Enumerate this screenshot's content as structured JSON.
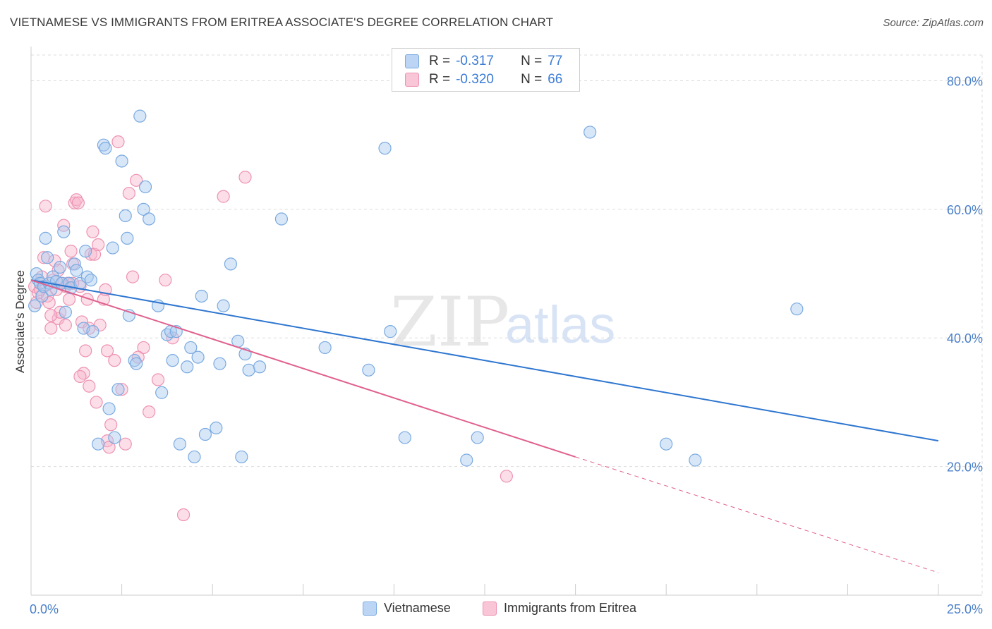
{
  "title": "VIETNAMESE VS IMMIGRANTS FROM ERITREA ASSOCIATE'S DEGREE CORRELATION CHART",
  "source": "Source: ZipAtlas.com",
  "watermark": {
    "zip": "ZIP",
    "atlas": "atlas"
  },
  "colors": {
    "vietnamese_fill": "#a9c9f0",
    "vietnamese_stroke": "#7aaae0",
    "vietnamese_line": "#2e76d0",
    "eritrea_fill": "#f7b6cc",
    "eritrea_stroke": "#ee92b2",
    "eritrea_line": "#e0608e",
    "axis_text": "#4a7fc8",
    "grid": "#dddddd"
  },
  "stats": [
    {
      "r_label": "R =",
      "r_value": "-0.317",
      "n_label": "N =",
      "n_value": "77"
    },
    {
      "r_label": "R =",
      "r_value": "-0.320",
      "n_label": "N =",
      "n_value": "66"
    }
  ],
  "legend": [
    "Vietnamese",
    "Immigrants from Eritrea"
  ],
  "chart_data": {
    "type": "scatter",
    "xlabel": "",
    "ylabel": "Associate's Degree",
    "xlim": [
      0,
      25
    ],
    "ylim": [
      0,
      84
    ],
    "x_tick_labels": [
      "0.0%",
      "25.0%"
    ],
    "y_ticks": [
      20,
      40,
      60,
      80
    ],
    "y_tick_labels": [
      "20.0%",
      "40.0%",
      "60.0%",
      "80.0%"
    ],
    "grid": true,
    "legend_position": "bottom",
    "series": [
      {
        "name": "Vietnamese",
        "points": [
          [
            0.15,
            50.0
          ],
          [
            0.2,
            49.0
          ],
          [
            0.25,
            48.5
          ],
          [
            0.3,
            46.5
          ],
          [
            0.35,
            48.0
          ],
          [
            0.4,
            55.5
          ],
          [
            0.45,
            52.5
          ],
          [
            0.5,
            48.5
          ],
          [
            0.55,
            47.5
          ],
          [
            0.6,
            49.5
          ],
          [
            0.7,
            48.8
          ],
          [
            0.8,
            51.0
          ],
          [
            0.85,
            48.5
          ],
          [
            0.9,
            56.5
          ],
          [
            0.95,
            44.0
          ],
          [
            1.05,
            48.5
          ],
          [
            1.1,
            47.8
          ],
          [
            1.2,
            51.5
          ],
          [
            1.25,
            50.5
          ],
          [
            1.35,
            48.5
          ],
          [
            1.45,
            41.5
          ],
          [
            1.5,
            53.5
          ],
          [
            1.55,
            49.5
          ],
          [
            1.65,
            49.0
          ],
          [
            1.7,
            41.0
          ],
          [
            1.85,
            23.5
          ],
          [
            2.0,
            70.0
          ],
          [
            2.05,
            69.5
          ],
          [
            2.15,
            29.0
          ],
          [
            2.25,
            54.0
          ],
          [
            2.3,
            24.5
          ],
          [
            2.4,
            32.0
          ],
          [
            2.5,
            67.5
          ],
          [
            2.6,
            59.0
          ],
          [
            2.65,
            55.5
          ],
          [
            2.7,
            43.5
          ],
          [
            2.85,
            36.5
          ],
          [
            2.9,
            36.0
          ],
          [
            3.0,
            74.5
          ],
          [
            3.1,
            60.0
          ],
          [
            3.15,
            63.5
          ],
          [
            3.25,
            58.5
          ],
          [
            3.5,
            45.0
          ],
          [
            3.6,
            31.5
          ],
          [
            3.75,
            40.5
          ],
          [
            3.85,
            41.0
          ],
          [
            3.9,
            36.5
          ],
          [
            4.0,
            41.0
          ],
          [
            4.1,
            23.5
          ],
          [
            4.3,
            35.5
          ],
          [
            4.4,
            38.5
          ],
          [
            4.5,
            21.5
          ],
          [
            4.6,
            37.0
          ],
          [
            4.7,
            46.5
          ],
          [
            4.8,
            25.0
          ],
          [
            5.1,
            26.0
          ],
          [
            5.2,
            36.0
          ],
          [
            5.3,
            45.0
          ],
          [
            5.5,
            51.5
          ],
          [
            5.7,
            39.5
          ],
          [
            5.8,
            21.5
          ],
          [
            5.9,
            37.5
          ],
          [
            6.0,
            35.0
          ],
          [
            6.3,
            35.5
          ],
          [
            6.9,
            58.5
          ],
          [
            8.1,
            38.5
          ],
          [
            9.3,
            35.0
          ],
          [
            9.75,
            69.5
          ],
          [
            9.9,
            41.0
          ],
          [
            10.3,
            24.5
          ],
          [
            12.0,
            21.0
          ],
          [
            12.3,
            24.5
          ],
          [
            15.4,
            72.0
          ],
          [
            17.5,
            23.5
          ],
          [
            18.3,
            21.0
          ],
          [
            21.1,
            44.5
          ],
          [
            0.1,
            45.0
          ]
        ],
        "trend": {
          "x": [
            0,
            25
          ],
          "y": [
            49.0,
            24.0
          ]
        }
      },
      {
        "name": "Immigrants from Eritrea",
        "points": [
          [
            0.1,
            48.0
          ],
          [
            0.15,
            45.5
          ],
          [
            0.2,
            47.0
          ],
          [
            0.3,
            49.5
          ],
          [
            0.35,
            52.5
          ],
          [
            0.4,
            60.5
          ],
          [
            0.45,
            46.5
          ],
          [
            0.5,
            45.5
          ],
          [
            0.55,
            41.5
          ],
          [
            0.6,
            49.0
          ],
          [
            0.65,
            52.0
          ],
          [
            0.7,
            47.5
          ],
          [
            0.75,
            43.0
          ],
          [
            0.8,
            44.0
          ],
          [
            0.85,
            48.5
          ],
          [
            0.9,
            57.5
          ],
          [
            0.95,
            42.0
          ],
          [
            1.0,
            48.5
          ],
          [
            1.05,
            46.0
          ],
          [
            1.1,
            53.5
          ],
          [
            1.15,
            51.5
          ],
          [
            1.2,
            61.0
          ],
          [
            1.25,
            61.5
          ],
          [
            1.3,
            61.0
          ],
          [
            1.35,
            48.0
          ],
          [
            1.4,
            42.5
          ],
          [
            1.45,
            34.5
          ],
          [
            1.5,
            38.0
          ],
          [
            1.55,
            46.0
          ],
          [
            1.6,
            32.5
          ],
          [
            1.65,
            53.0
          ],
          [
            1.7,
            56.5
          ],
          [
            1.75,
            53.0
          ],
          [
            1.8,
            30.0
          ],
          [
            1.85,
            54.5
          ],
          [
            1.9,
            42.0
          ],
          [
            2.0,
            46.0
          ],
          [
            2.05,
            47.5
          ],
          [
            2.1,
            24.0
          ],
          [
            2.15,
            23.0
          ],
          [
            2.2,
            26.5
          ],
          [
            2.3,
            36.5
          ],
          [
            2.4,
            70.5
          ],
          [
            2.5,
            32.0
          ],
          [
            2.6,
            23.5
          ],
          [
            2.7,
            62.5
          ],
          [
            2.8,
            49.5
          ],
          [
            2.9,
            64.5
          ],
          [
            3.1,
            38.5
          ],
          [
            3.25,
            28.5
          ],
          [
            3.5,
            33.5
          ],
          [
            3.7,
            49.0
          ],
          [
            3.9,
            40.0
          ],
          [
            4.2,
            12.5
          ],
          [
            5.3,
            62.0
          ],
          [
            5.9,
            65.0
          ],
          [
            13.1,
            18.5
          ],
          [
            0.25,
            47.5
          ],
          [
            0.55,
            43.5
          ],
          [
            0.75,
            50.5
          ],
          [
            0.95,
            48.0
          ],
          [
            1.15,
            48.5
          ],
          [
            1.35,
            34.0
          ],
          [
            1.6,
            41.5
          ],
          [
            2.1,
            38.0
          ],
          [
            2.95,
            37.0
          ]
        ],
        "trend": {
          "x": [
            0,
            15
          ],
          "y": [
            49.0,
            21.5
          ]
        },
        "trend_dashed": {
          "x": [
            15,
            25
          ],
          "y": [
            21.5,
            3.5
          ]
        }
      }
    ]
  }
}
